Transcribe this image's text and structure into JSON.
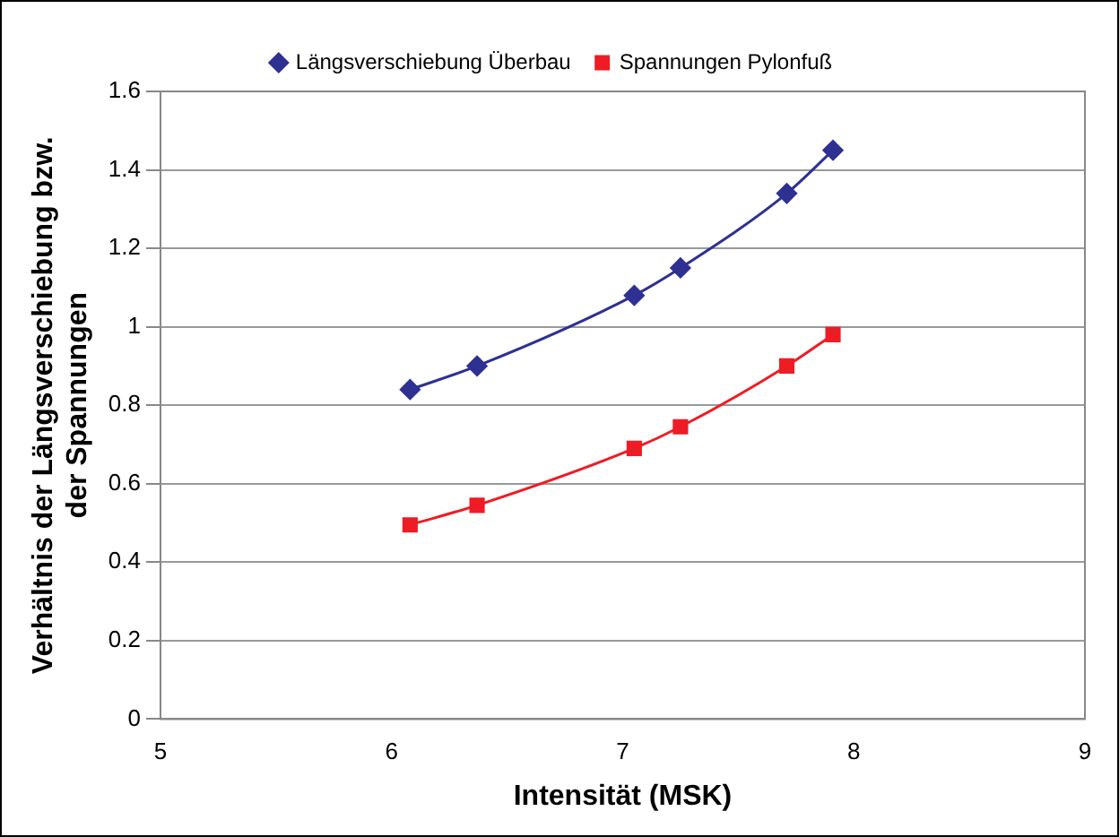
{
  "chart_data": {
    "type": "line",
    "xlabel": "Intensität (MSK)",
    "ylabel": "Verhältnis der Längsverschiebung bzw.\nder Spannungen",
    "xlim": [
      5,
      9
    ],
    "xticks": [
      5,
      6,
      7,
      8,
      9
    ],
    "ylim": [
      0,
      1.6
    ],
    "yticks": [
      0,
      0.2,
      0.4,
      0.6,
      0.8,
      1,
      1.2,
      1.4,
      1.6
    ],
    "x": [
      6.08,
      6.37,
      7.05,
      7.25,
      7.71,
      7.91
    ],
    "series": [
      {
        "name": "Längsverschiebung Überbau",
        "color": "#2e3192",
        "marker": "diamond",
        "values": [
          0.84,
          0.9,
          1.08,
          1.15,
          1.34,
          1.45
        ]
      },
      {
        "name": "Spannungen Pylonfuß",
        "color": "#ee1c25",
        "marker": "square",
        "values": [
          0.495,
          0.545,
          0.69,
          0.745,
          0.9,
          0.98
        ]
      }
    ],
    "grid": "y",
    "legend": "top"
  }
}
